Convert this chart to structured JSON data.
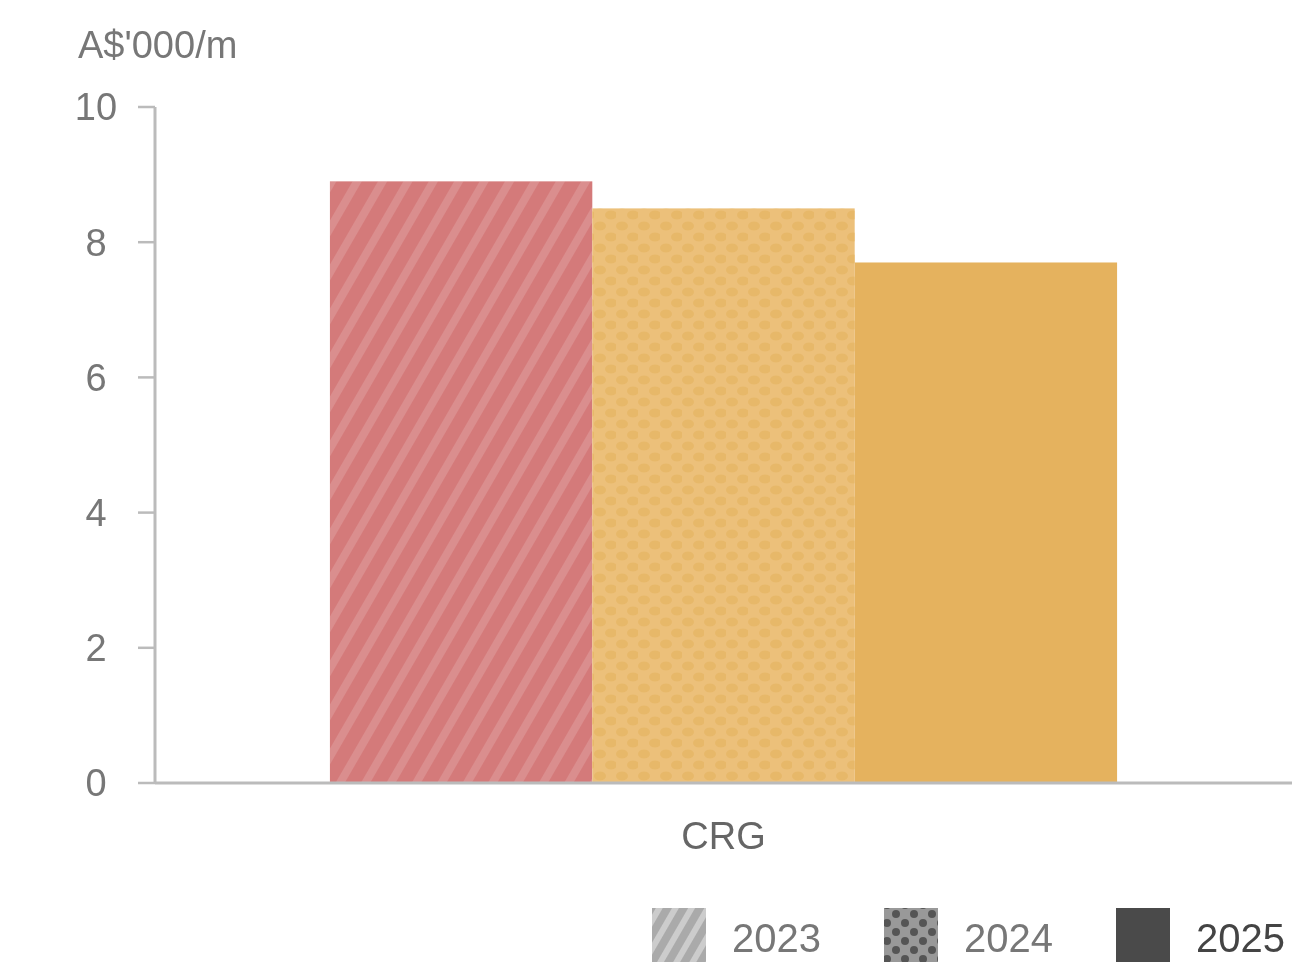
{
  "chart_data": {
    "type": "bar",
    "ylabel": "A$'000/m",
    "categories": [
      "CRG"
    ],
    "series": [
      {
        "name": "2023",
        "color": "#d47a7a",
        "values": [
          8.9
        ]
      },
      {
        "name": "2024",
        "color": "#ecc07a",
        "values": [
          8.5
        ]
      },
      {
        "name": "2025",
        "color": "#e5b25e",
        "values": [
          7.7
        ]
      }
    ],
    "ylim": [
      0,
      10
    ],
    "yticks": [
      0,
      2,
      4,
      6,
      8,
      10
    ],
    "grid": false,
    "legend": "bottom right"
  }
}
